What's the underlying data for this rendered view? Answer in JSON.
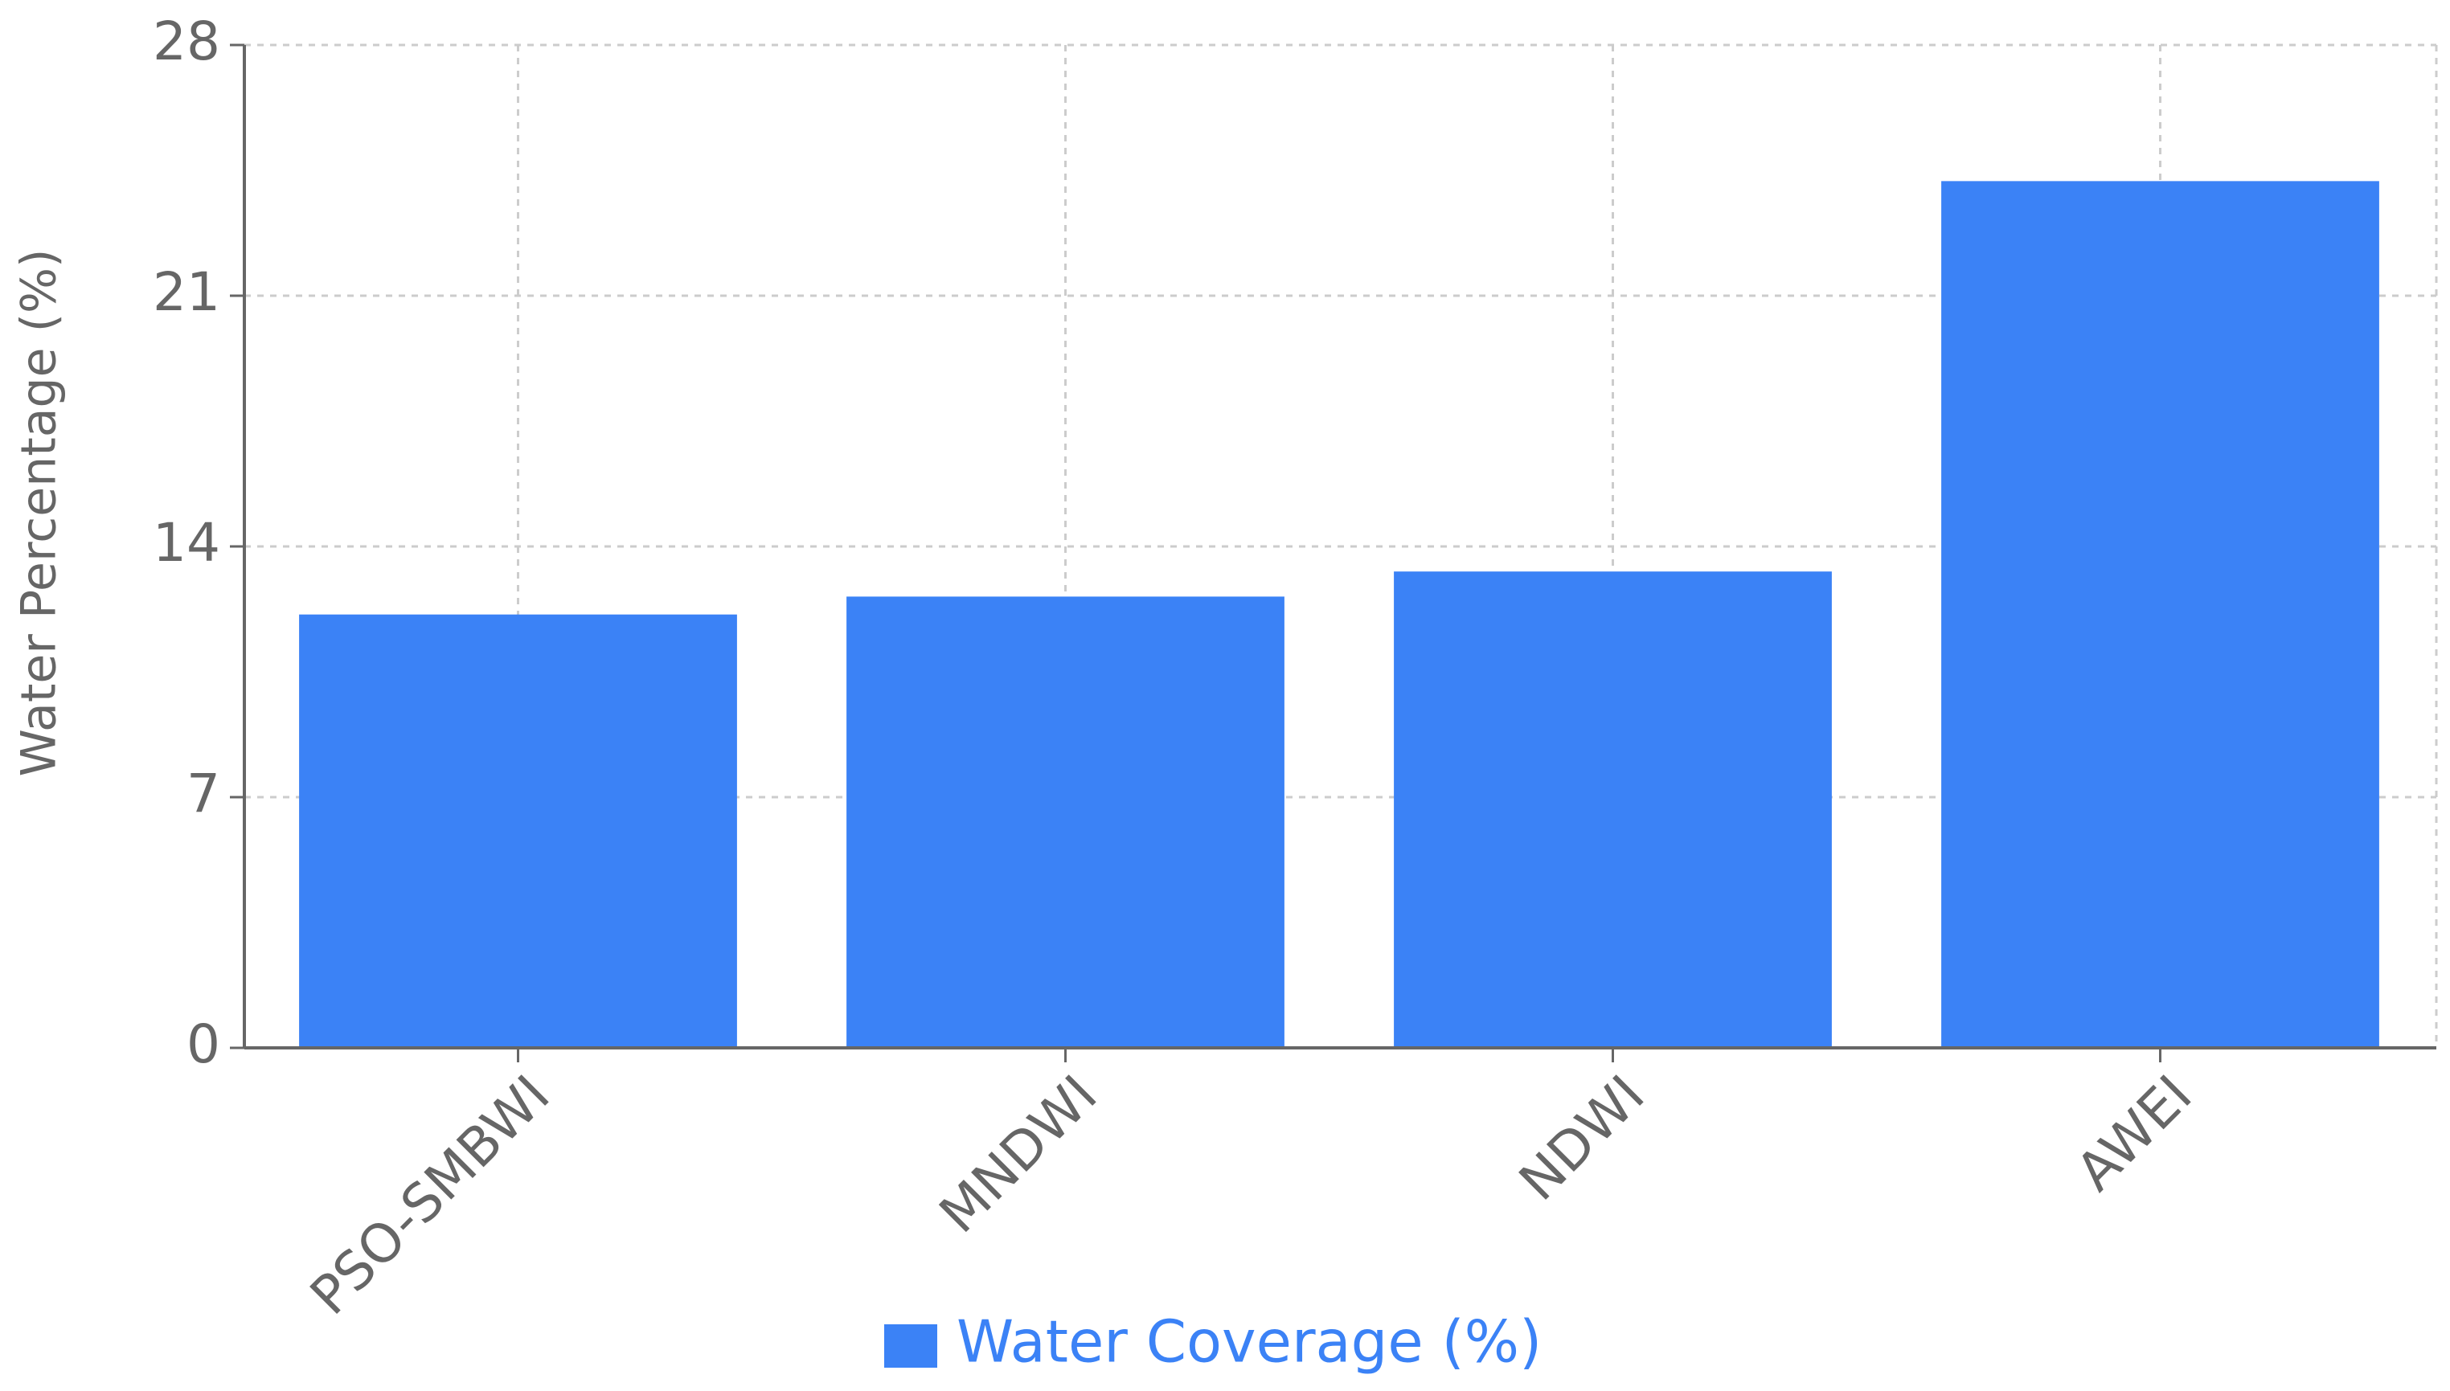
{
  "chart_data": {
    "type": "bar",
    "y_label": "Water Percentage (%)",
    "categories": [
      "PSO-SMBWI",
      "MNDWI",
      "NDWI",
      "AWEI"
    ],
    "series": [
      {
        "name": "Water Coverage (%)",
        "color": "#3b82f6",
        "values": [
          12.1,
          12.6,
          13.3,
          24.2
        ]
      }
    ],
    "ylim": [
      0,
      28
    ],
    "yticks": [
      0,
      7,
      14,
      21,
      28
    ],
    "grid": true,
    "legend": "bottom"
  }
}
